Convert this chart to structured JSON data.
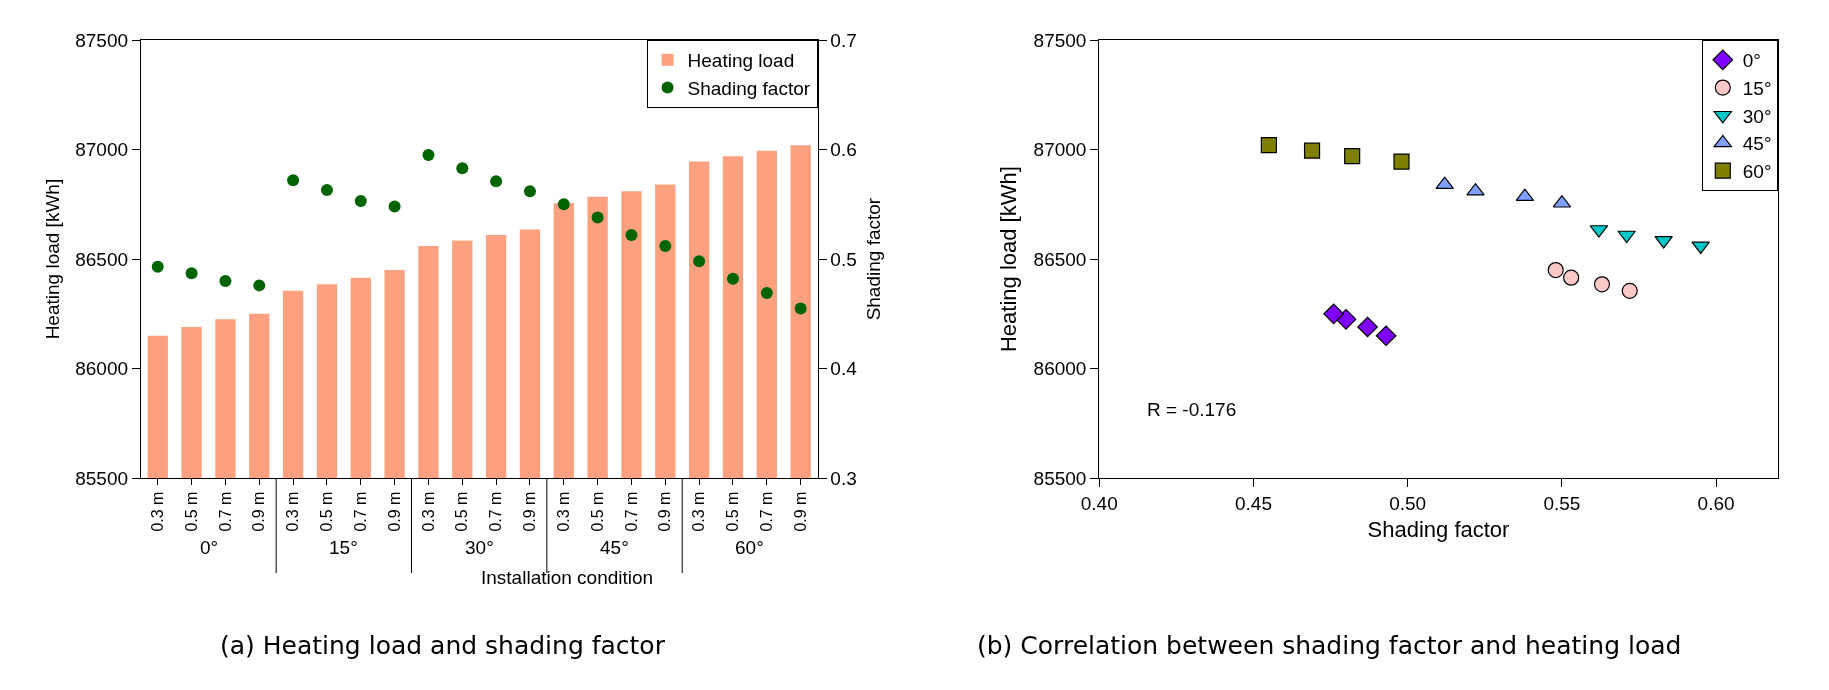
{
  "chart_data": [
    {
      "type": "bar",
      "title": "(a) Heating load and shading factor",
      "xlabel": "Installation condition",
      "ylabel": "Heating load [kWh]",
      "y2label": "Shading factor",
      "categories": [
        "0.3 m",
        "0.5 m",
        "0.7 m",
        "0.9 m",
        "0.3 m",
        "0.5 m",
        "0.7 m",
        "0.9 m",
        "0.3 m",
        "0.5 m",
        "0.7 m",
        "0.9 m",
        "0.3 m",
        "0.5 m",
        "0.7 m",
        "0.9 m",
        "0.3 m",
        "0.5 m",
        "0.7 m",
        "0.9 m"
      ],
      "annotations": [
        "0°",
        "15°",
        "30°",
        "45°",
        "60°"
      ],
      "series": [
        {
          "name": "Heating load",
          "type": "bar",
          "color": "#fca080",
          "values": [
            86150,
            86190,
            86225,
            86250,
            86355,
            86385,
            86415,
            86450,
            86560,
            86585,
            86610,
            86635,
            86755,
            86785,
            86810,
            86840,
            86945,
            86970,
            86995,
            87020
          ]
        },
        {
          "name": "Shading factor",
          "type": "scatter",
          "axis": "y2",
          "color": "#006400",
          "marker": "circle",
          "values": [
            0.493,
            0.487,
            0.48,
            0.476,
            0.572,
            0.563,
            0.553,
            0.548,
            0.595,
            0.583,
            0.571,
            0.562,
            0.55,
            0.538,
            0.522,
            0.512,
            0.498,
            0.482,
            0.469,
            0.455
          ]
        }
      ],
      "ylim": [
        85500,
        87500
      ],
      "yticks": [
        85500,
        86000,
        86500,
        87000,
        87500
      ],
      "y2lim": [
        0.3,
        0.7
      ],
      "y2ticks": [
        0.3,
        0.4,
        0.5,
        0.6,
        0.7
      ],
      "legend": "top right"
    },
    {
      "type": "scatter",
      "title": "(b) Correlation between shading factor and heating load",
      "xlabel": "Shading factor",
      "ylabel": "Heating load [kWh]",
      "annotations": [
        {
          "text": "R = -0.176"
        }
      ],
      "series": [
        {
          "name": "0°",
          "color": "#8000ff",
          "marker": "diamond",
          "x": [
            0.493,
            0.487,
            0.48,
            0.476
          ],
          "values": [
            86150,
            86190,
            86225,
            86250
          ]
        },
        {
          "name": "15°",
          "color": "#ffc8c8",
          "marker": "circle",
          "x": [
            0.572,
            0.563,
            0.553,
            0.548
          ],
          "values": [
            86355,
            86385,
            86415,
            86450
          ]
        },
        {
          "name": "30°",
          "color": "#00c8c8",
          "marker": "triangle-down",
          "x": [
            0.595,
            0.583,
            0.571,
            0.562
          ],
          "values": [
            86560,
            86585,
            86610,
            86635
          ]
        },
        {
          "name": "45°",
          "color": "#7f9fff",
          "marker": "triangle",
          "x": [
            0.55,
            0.538,
            0.522,
            0.512
          ],
          "values": [
            86755,
            86785,
            86810,
            86840
          ]
        },
        {
          "name": "60°",
          "color": "#808000",
          "marker": "square",
          "x": [
            0.498,
            0.482,
            0.469,
            0.455
          ],
          "values": [
            86945,
            86970,
            86995,
            87020
          ]
        }
      ],
      "xlim": [
        0.4,
        0.62
      ],
      "xticks": [
        {
          "value": 0.4,
          "label": "0.40"
        },
        {
          "value": 0.45,
          "label": "0.45"
        },
        {
          "value": 0.5,
          "label": "0.50"
        },
        {
          "value": 0.55,
          "label": "0.55"
        },
        {
          "value": 0.6,
          "label": "0.60"
        }
      ],
      "ylim": [
        85500,
        87500
      ],
      "yticks": [
        85500,
        86000,
        86500,
        87000,
        87500
      ],
      "legend": "top right"
    }
  ]
}
